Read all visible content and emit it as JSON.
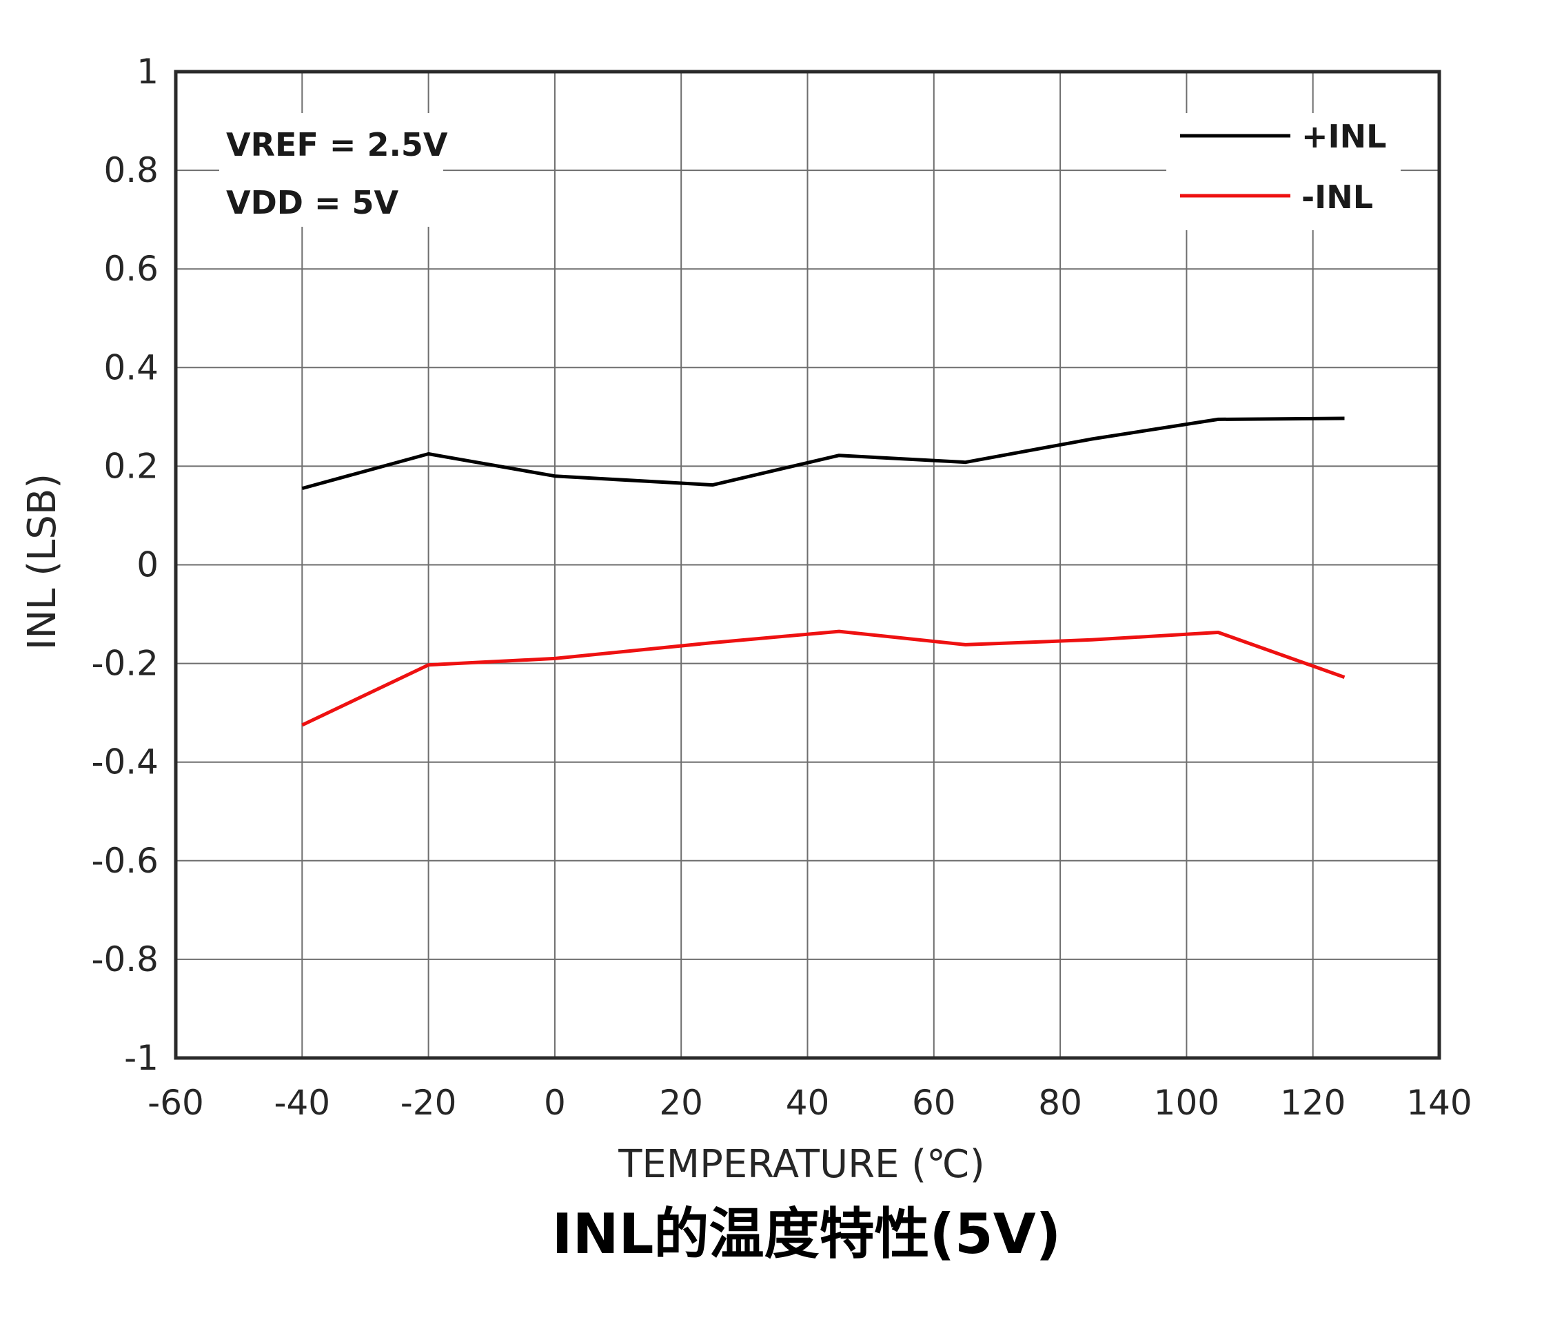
{
  "chart_data": {
    "type": "line",
    "caption": "INL的温度特性(5V)",
    "xlabel": "TEMPERATURE (℃)",
    "ylabel": "INL (LSB)",
    "xlim": [
      -60,
      140
    ],
    "ylim": [
      -1,
      1
    ],
    "x_ticks": [
      -60,
      -40,
      -20,
      0,
      20,
      40,
      60,
      80,
      100,
      120,
      140
    ],
    "y_ticks": [
      1,
      0.8,
      0.6,
      0.4,
      0.2,
      0,
      -0.2,
      -0.4,
      -0.6,
      -0.8,
      -1
    ],
    "x_tick_labels": [
      "-60",
      "-40",
      "-20",
      "0",
      "20",
      "40",
      "60",
      "80",
      "100",
      "120",
      "140"
    ],
    "y_tick_labels": [
      "1",
      "0.8",
      "0.6",
      "0.4",
      "0.2",
      "0",
      "-0.2",
      "-0.4",
      "-0.6",
      "-0.8",
      "-1"
    ],
    "grid": true,
    "legend_position": "top-right",
    "annotations": [
      "VREF = 2.5V",
      "VDD = 5V"
    ],
    "series": [
      {
        "name": "+INL",
        "color": "#000000",
        "x": [
          -40,
          -20,
          0,
          25,
          45,
          65,
          85,
          105,
          125
        ],
        "y": [
          0.155,
          0.225,
          0.18,
          0.162,
          0.222,
          0.208,
          0.255,
          0.295,
          0.297
        ]
      },
      {
        "name": "-INL",
        "color": "#ee1111",
        "x": [
          -40,
          -20,
          0,
          25,
          45,
          65,
          85,
          105,
          125
        ],
        "y": [
          -0.325,
          -0.203,
          -0.19,
          -0.158,
          -0.135,
          -0.162,
          -0.152,
          -0.137,
          -0.228
        ]
      }
    ]
  }
}
